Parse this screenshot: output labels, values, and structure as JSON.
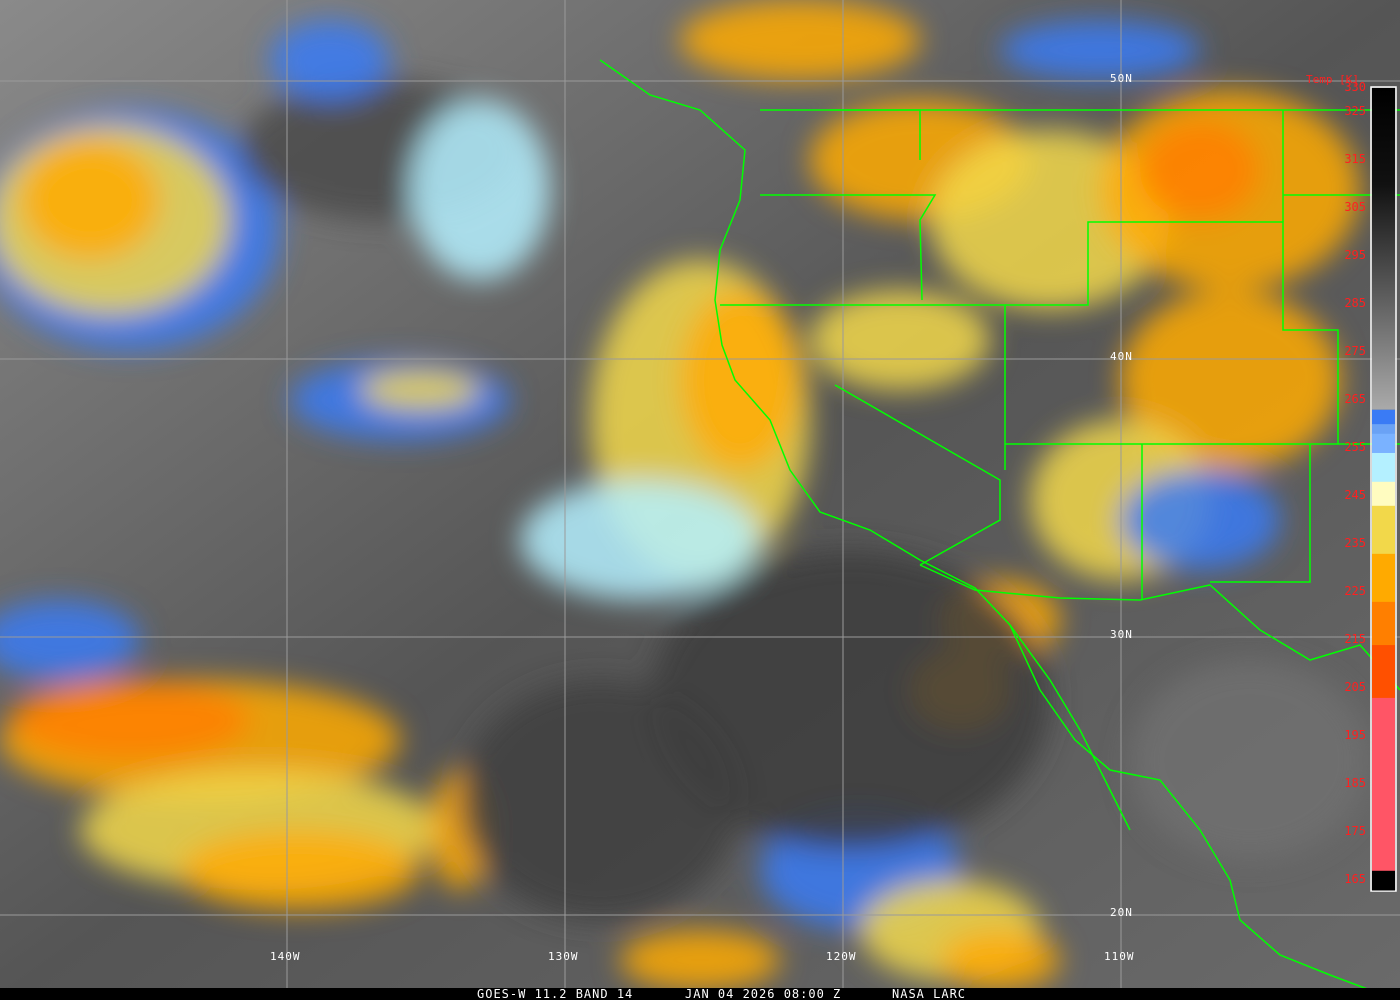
{
  "footer": {
    "satellite": "GOES-W 11.2 BAND 14",
    "datetime": "JAN 04 2026 08:00 Z",
    "credit": "NASA LARC"
  },
  "grid": {
    "latitudes": [
      "50N",
      "40N",
      "30N",
      "20N"
    ],
    "longitudes": [
      "140W",
      "130W",
      "120W",
      "110W"
    ],
    "line_color": "#9a9a9a"
  },
  "colorbar": {
    "title": "Temp [K]",
    "ticks": [
      330,
      325,
      315,
      305,
      295,
      285,
      275,
      265,
      255,
      245,
      235,
      225,
      215,
      205,
      195,
      185,
      175,
      165
    ],
    "bands": [
      {
        "from": 263,
        "to": 260,
        "color": "#3a7bf5"
      },
      {
        "from": 260,
        "to": 258,
        "color": "#6aa2f5"
      },
      {
        "from": 258,
        "to": 254,
        "color": "#7ab2ff"
      },
      {
        "from": 254,
        "to": 248,
        "color": "#b4f0ff"
      },
      {
        "from": 248,
        "to": 243,
        "color": "#fffcc0"
      },
      {
        "from": 243,
        "to": 233,
        "color": "#f2d84a"
      },
      {
        "from": 233,
        "to": 223,
        "color": "#ffaa00"
      },
      {
        "from": 223,
        "to": 214,
        "color": "#ff7f00"
      },
      {
        "from": 214,
        "to": 203,
        "color": "#ff5000"
      },
      {
        "from": 203,
        "to": 167,
        "color": "#ff5566"
      },
      {
        "from": 167,
        "to": 163,
        "color": "#000000"
      }
    ]
  },
  "overlay_colors": {
    "borders": "#00ff00",
    "labels": "#ffffff",
    "colorbar_labels": "#ff2020"
  }
}
